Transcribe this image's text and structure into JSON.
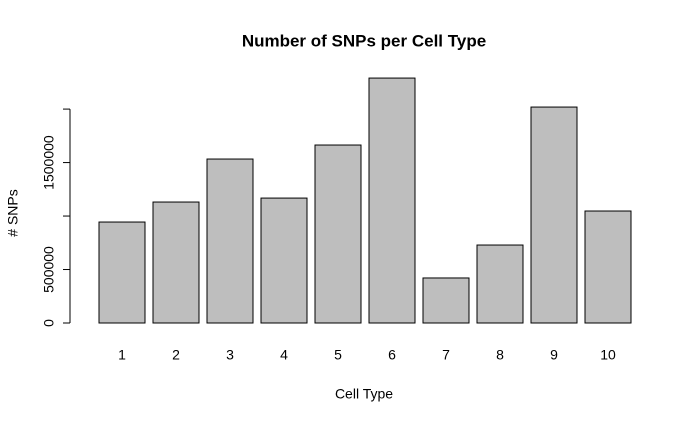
{
  "chart_data": {
    "type": "bar",
    "title": "Number of SNPs per Cell Type",
    "x_label": "Cell Type",
    "y_label": "# SNPs",
    "categories": [
      "1",
      "2",
      "3",
      "4",
      "5",
      "6",
      "7",
      "8",
      "9",
      "10"
    ],
    "values": [
      944000,
      1131000,
      1533000,
      1168000,
      1664000,
      2290000,
      421000,
      729000,
      2019000,
      1047000
    ],
    "color": "#bebebe",
    "ylim": [
      0,
      2300000
    ],
    "yticks": [
      0,
      500000,
      {
        "value": 1000000,
        "label": null
      },
      1500000,
      {
        "value": 2000000,
        "label": null
      }
    ],
    "grid": false
  }
}
